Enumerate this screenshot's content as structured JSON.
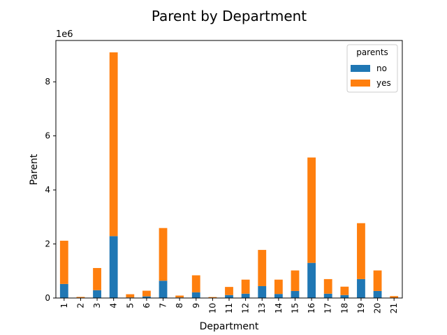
{
  "chart_data": {
    "type": "bar",
    "stacked": true,
    "title": "Parent by Department",
    "xlabel": "Department",
    "ylabel": "Parent",
    "offset_label": "1e6",
    "categories": [
      "1",
      "2",
      "3",
      "4",
      "5",
      "6",
      "7",
      "8",
      "9",
      "10",
      "11",
      "12",
      "13",
      "14",
      "15",
      "16",
      "17",
      "18",
      "19",
      "20",
      "21"
    ],
    "series": [
      {
        "name": "no",
        "color": "#1f77b4",
        "values": [
          520000,
          10000,
          290000,
          2290000,
          20000,
          60000,
          640000,
          20000,
          210000,
          5000,
          110000,
          160000,
          440000,
          150000,
          260000,
          1300000,
          160000,
          110000,
          700000,
          260000,
          10000
        ]
      },
      {
        "name": "yes",
        "color": "#ff7f0e",
        "values": [
          1600000,
          30000,
          820000,
          6800000,
          120000,
          210000,
          1950000,
          70000,
          630000,
          30000,
          300000,
          520000,
          1340000,
          530000,
          760000,
          3900000,
          540000,
          310000,
          2070000,
          760000,
          60000
        ]
      }
    ],
    "ylim": [
      0,
      9530000
    ],
    "yticks": [
      0,
      2000000,
      4000000,
      6000000,
      8000000
    ],
    "ytick_labels": [
      "0",
      "2",
      "4",
      "6",
      "8"
    ],
    "legend": {
      "title": "parents",
      "position": "top-right"
    },
    "grid": false
  }
}
